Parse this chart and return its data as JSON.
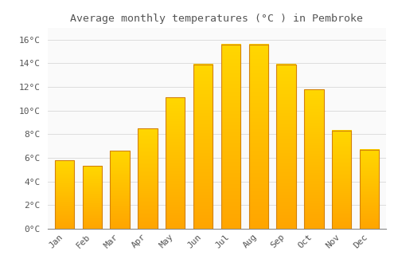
{
  "title": "Average monthly temperatures (°C ) in Pembroke",
  "months": [
    "Jan",
    "Feb",
    "Mar",
    "Apr",
    "May",
    "Jun",
    "Jul",
    "Aug",
    "Sep",
    "Oct",
    "Nov",
    "Dec"
  ],
  "values": [
    5.8,
    5.3,
    6.6,
    8.5,
    11.1,
    13.9,
    15.6,
    15.6,
    13.9,
    11.8,
    8.3,
    6.7
  ],
  "bar_color_top": "#FFD700",
  "bar_color_bottom": "#FFA500",
  "bar_edge_color": "#D4820A",
  "background_color": "#FFFFFF",
  "plot_bg_color": "#FAFAFA",
  "grid_color": "#DDDDDD",
  "text_color": "#555555",
  "ylim": [
    0,
    17
  ],
  "ytick_values": [
    0,
    2,
    4,
    6,
    8,
    10,
    12,
    14,
    16
  ],
  "title_fontsize": 9.5,
  "tick_fontsize": 8,
  "bar_width": 0.7
}
